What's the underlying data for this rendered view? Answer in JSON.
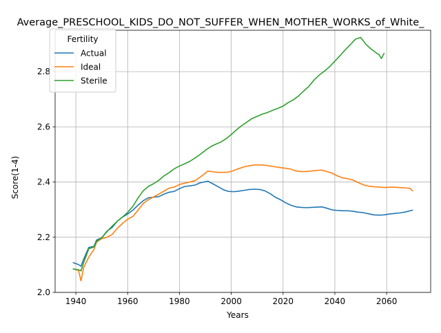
{
  "chart_data": {
    "type": "line",
    "title": "Average_PRESCHOOL_KIDS_DO_NOT_SUFFER_WHEN_MOTHER_WORKS_of_White_",
    "xlabel": "Years",
    "ylabel": "Score(1-4)",
    "xlim": [
      1932,
      2077
    ],
    "ylim": [
      2.0,
      2.95
    ],
    "xticks": [
      1940,
      1960,
      1980,
      2000,
      2020,
      2040,
      2060
    ],
    "yticks": [
      2.0,
      2.2,
      2.4,
      2.6,
      2.8
    ],
    "ytick_labels": [
      "2.0",
      "2.2",
      "2.4",
      "2.6",
      "2.8"
    ],
    "grid": true,
    "legend": {
      "title": "Fertility",
      "placement": "upper-left"
    },
    "series": [
      {
        "name": "Actual",
        "color": "#1f77b4",
        "x": [
          1939,
          1941,
          1942,
          1943,
          1945,
          1947,
          1948,
          1950,
          1952,
          1954,
          1956,
          1958,
          1960,
          1962,
          1964,
          1966,
          1968,
          1970,
          1972,
          1974,
          1976,
          1978,
          1980,
          1982,
          1984,
          1986,
          1988,
          1990,
          1991,
          1993,
          1995,
          1997,
          1999,
          2001,
          2003,
          2005,
          2007,
          2009,
          2011,
          2013,
          2015,
          2017,
          2019,
          2021,
          2023,
          2025,
          2027,
          2029,
          2031,
          2033,
          2035,
          2037,
          2039,
          2041,
          2043,
          2045,
          2047,
          2049,
          2051,
          2053,
          2055,
          2057,
          2059,
          2061,
          2063,
          2065,
          2067,
          2070
        ],
        "y": [
          2.108,
          2.101,
          2.095,
          2.12,
          2.163,
          2.167,
          2.19,
          2.198,
          2.222,
          2.235,
          2.258,
          2.273,
          2.284,
          2.298,
          2.316,
          2.332,
          2.343,
          2.345,
          2.347,
          2.356,
          2.363,
          2.366,
          2.376,
          2.384,
          2.386,
          2.389,
          2.397,
          2.401,
          2.403,
          2.393,
          2.383,
          2.372,
          2.366,
          2.365,
          2.367,
          2.37,
          2.373,
          2.374,
          2.373,
          2.368,
          2.358,
          2.345,
          2.336,
          2.325,
          2.316,
          2.31,
          2.308,
          2.307,
          2.308,
          2.309,
          2.31,
          2.305,
          2.299,
          2.297,
          2.296,
          2.296,
          2.294,
          2.291,
          2.289,
          2.285,
          2.281,
          2.28,
          2.281,
          2.284,
          2.286,
          2.288,
          2.291,
          2.298
        ]
      },
      {
        "name": "Ideal",
        "color": "#ff7f0e",
        "x": [
          1939,
          1941,
          1942,
          1943,
          1945,
          1947,
          1948,
          1950,
          1952,
          1954,
          1956,
          1958,
          1960,
          1962,
          1964,
          1966,
          1968,
          1970,
          1972,
          1974,
          1976,
          1978,
          1980,
          1982,
          1984,
          1986,
          1988,
          1990,
          1991,
          1993,
          1995,
          1997,
          1999,
          2001,
          2003,
          2005,
          2007,
          2009,
          2011,
          2013,
          2015,
          2017,
          2019,
          2021,
          2023,
          2025,
          2027,
          2029,
          2031,
          2033,
          2035,
          2037,
          2039,
          2041,
          2043,
          2045,
          2047,
          2049,
          2051,
          2053,
          2055,
          2057,
          2059,
          2061,
          2063,
          2065,
          2067,
          2069,
          2070
        ],
        "y": [
          2.085,
          2.08,
          2.042,
          2.09,
          2.128,
          2.156,
          2.182,
          2.195,
          2.2,
          2.21,
          2.232,
          2.25,
          2.265,
          2.275,
          2.298,
          2.322,
          2.336,
          2.346,
          2.356,
          2.367,
          2.378,
          2.382,
          2.391,
          2.396,
          2.4,
          2.405,
          2.418,
          2.432,
          2.44,
          2.437,
          2.435,
          2.435,
          2.436,
          2.442,
          2.449,
          2.455,
          2.459,
          2.462,
          2.462,
          2.461,
          2.458,
          2.455,
          2.452,
          2.45,
          2.447,
          2.44,
          2.438,
          2.438,
          2.44,
          2.442,
          2.443,
          2.438,
          2.432,
          2.422,
          2.415,
          2.412,
          2.407,
          2.398,
          2.39,
          2.385,
          2.383,
          2.382,
          2.38,
          2.381,
          2.381,
          2.38,
          2.379,
          2.377,
          2.368
        ]
      },
      {
        "name": "Sterile",
        "color": "#2ca02c",
        "x": [
          1939,
          1941,
          1942,
          1943,
          1945,
          1947,
          1948,
          1950,
          1952,
          1954,
          1956,
          1958,
          1960,
          1962,
          1964,
          1966,
          1968,
          1970,
          1972,
          1974,
          1976,
          1978,
          1980,
          1982,
          1984,
          1986,
          1988,
          1990,
          1992,
          1994,
          1996,
          1998,
          2000,
          2002,
          2004,
          2006,
          2008,
          2010,
          2012,
          2014,
          2016,
          2018,
          2020,
          2022,
          2024,
          2026,
          2028,
          2030,
          2032,
          2034,
          2036,
          2038,
          2040,
          2042,
          2044,
          2046,
          2048,
          2049,
          2050,
          2052,
          2054,
          2056,
          2057,
          2058,
          2059
        ],
        "y": [
          2.085,
          2.082,
          2.078,
          2.108,
          2.158,
          2.165,
          2.185,
          2.198,
          2.22,
          2.24,
          2.258,
          2.273,
          2.29,
          2.312,
          2.342,
          2.368,
          2.384,
          2.394,
          2.406,
          2.422,
          2.434,
          2.448,
          2.458,
          2.466,
          2.475,
          2.487,
          2.5,
          2.515,
          2.528,
          2.537,
          2.545,
          2.557,
          2.572,
          2.589,
          2.604,
          2.617,
          2.63,
          2.638,
          2.646,
          2.652,
          2.66,
          2.667,
          2.675,
          2.688,
          2.698,
          2.712,
          2.73,
          2.747,
          2.77,
          2.788,
          2.802,
          2.818,
          2.838,
          2.858,
          2.879,
          2.898,
          2.918,
          2.921,
          2.924,
          2.899,
          2.882,
          2.868,
          2.862,
          2.848,
          2.866
        ]
      }
    ]
  }
}
